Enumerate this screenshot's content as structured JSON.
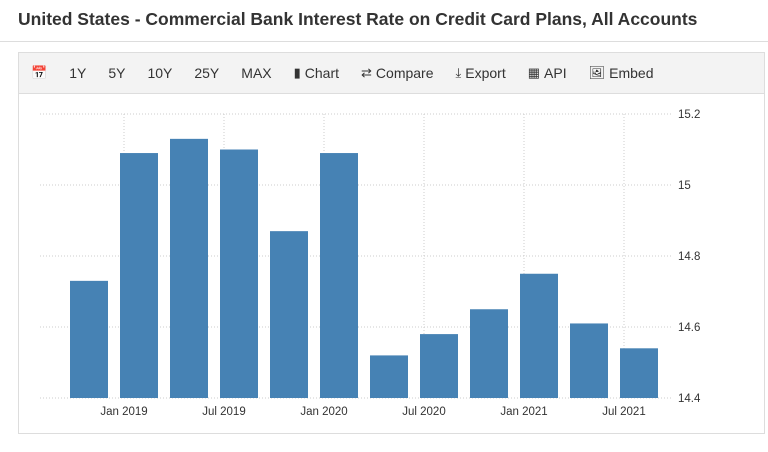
{
  "title": "United States - Commercial Bank Interest Rate on Credit Card Plans, All Accounts",
  "toolbar": {
    "calendar_icon": "calendar-icon",
    "ranges": [
      "1Y",
      "5Y",
      "10Y",
      "25Y",
      "MAX"
    ],
    "chart": "Chart",
    "compare": "Compare",
    "export": "Export",
    "api": "API",
    "embed": "Embed"
  },
  "colors": {
    "bar": "#4682b4"
  },
  "chart_data": {
    "type": "bar",
    "categories": [
      "Nov 2018",
      "Feb 2019",
      "May 2019",
      "Aug 2019",
      "Nov 2019",
      "Feb 2020",
      "May 2020",
      "Aug 2020",
      "Nov 2020",
      "Feb 2021",
      "May 2021",
      "Aug 2021"
    ],
    "values": [
      14.73,
      15.09,
      15.13,
      15.1,
      14.87,
      15.09,
      14.52,
      14.58,
      14.65,
      14.75,
      14.61,
      14.54
    ],
    "ylim": [
      14.4,
      15.2
    ],
    "yticks": [
      "14.4",
      "14.6",
      "14.8",
      "15",
      "15.2"
    ],
    "xticks": [
      "Jan 2019",
      "Jul 2019",
      "Jan 2020",
      "Jul 2020",
      "Jan 2021",
      "Jul 2021"
    ],
    "y_axis_side": "right",
    "grid": true
  }
}
